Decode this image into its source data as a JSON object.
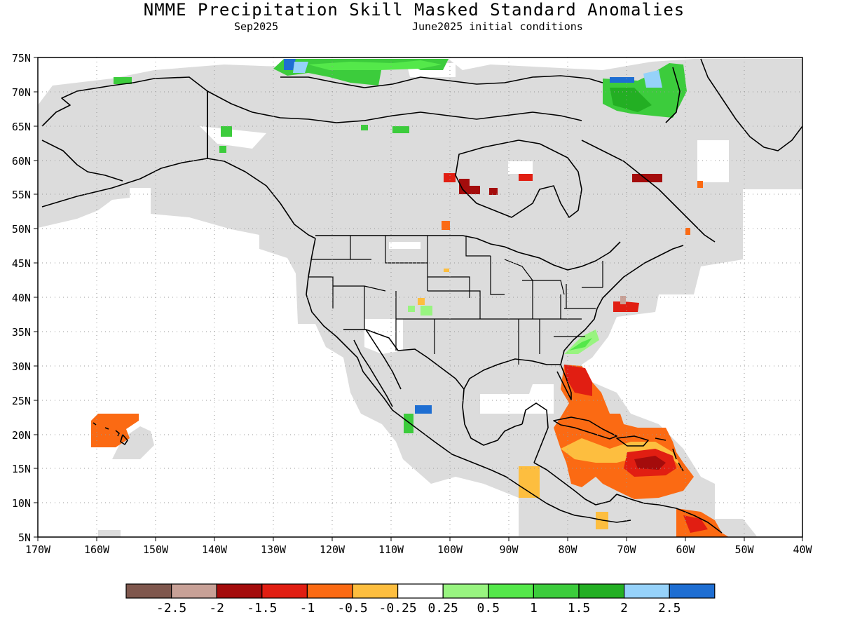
{
  "title": "NMME Precipitation Skill Masked Standard Anomalies",
  "subtitle_left": "Sep2025",
  "subtitle_right": "June2025 initial conditions",
  "map": {
    "lon_range": [
      -170,
      -40
    ],
    "lat_range": [
      5,
      75
    ],
    "x_ticks": [
      "170W",
      "160W",
      "150W",
      "140W",
      "130W",
      "120W",
      "110W",
      "100W",
      "90W",
      "80W",
      "70W",
      "60W",
      "50W",
      "40W"
    ],
    "y_ticks": [
      "75N",
      "70N",
      "65N",
      "60N",
      "55N",
      "50N",
      "45N",
      "40N",
      "35N",
      "30N",
      "25N",
      "20N",
      "15N",
      "10N",
      "5N"
    ],
    "grid": "dotted",
    "mask_color": "#dcdcdc"
  },
  "colorbar": {
    "colors": [
      "#7f574d",
      "#c8a197",
      "#a40c0c",
      "#e11e12",
      "#fb6a13",
      "#fdbe3f",
      "#ffffff",
      "#98f480",
      "#54e84a",
      "#3ccc3c",
      "#23af23",
      "#96d2fa",
      "#1e6ed2"
    ],
    "labels": [
      "-2.5",
      "-2",
      "-1.5",
      "-1",
      "-0.5",
      "-0.25",
      "0.25",
      "0.5",
      "1",
      "1.5",
      "2",
      "2.5"
    ]
  }
}
